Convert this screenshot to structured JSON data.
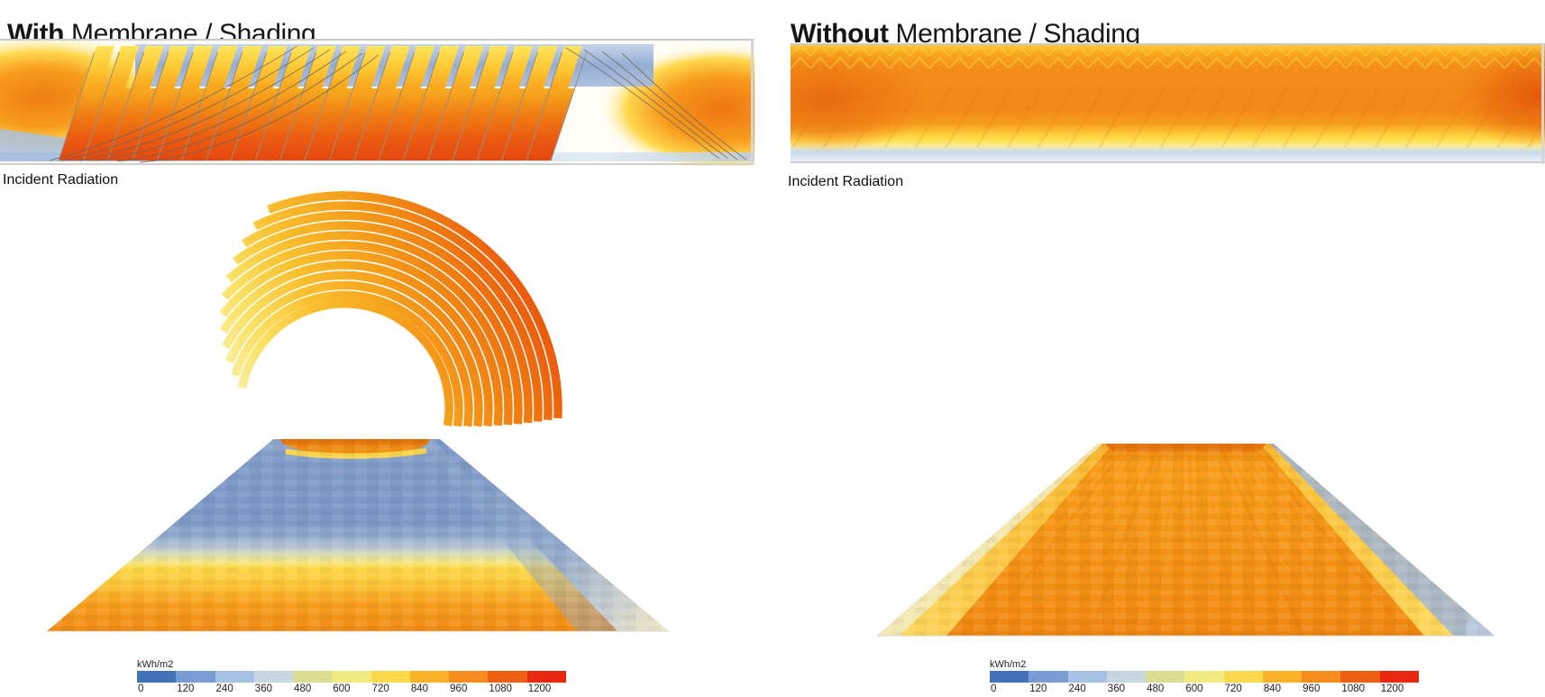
{
  "left_panel": {
    "title_bold": "With",
    "title_rest": " Membrane / Shading",
    "radiation_label": "Incident Radiation"
  },
  "right_panel": {
    "title_bold": "Without",
    "title_rest": " Membrane / Shading",
    "radiation_label": "Incident Radiation"
  },
  "legend": {
    "unit": "kWh/m2",
    "ticks": [
      "0",
      "120",
      "240",
      "360",
      "480",
      "600",
      "720",
      "840",
      "960",
      "1080",
      "1200"
    ],
    "colors": [
      "#4472b8",
      "#7a9cd4",
      "#a6c3e6",
      "#c6d7e2",
      "#dade8e",
      "#f1ea7e",
      "#fcd94a",
      "#fbb226",
      "#f68d1d",
      "#ef5f12",
      "#e8290f"
    ]
  },
  "chart_data": [
    {
      "type": "heatmap",
      "title": "With Membrane / Shading",
      "label": "Incident Radiation",
      "unit": "kWh/m2",
      "scale": {
        "min": 0,
        "max": 1300,
        "step": 120,
        "tick_values": [
          0,
          120,
          240,
          360,
          480,
          600,
          720,
          840,
          960,
          1080,
          1200
        ],
        "colors": [
          "#4472b8",
          "#7a9cd4",
          "#a6c3e6",
          "#c6d7e2",
          "#dade8e",
          "#f1ea7e",
          "#fcd94a",
          "#fbb226",
          "#f68d1d",
          "#ef5f12",
          "#e8290f"
        ]
      },
      "legend_position": "bottom-left",
      "views": [
        {
          "name": "section-elevation-strip",
          "value_ranges": "slanted membrane panels 960-1300 kWh/m2 (orange-red); shaded background behind panel tops 120-360 (slate blue); open ends 600-1080 (yellow-orange); ground line 120-360 (pale blue)"
        },
        {
          "name": "membrane-fan",
          "value_ranges": "curved membrane strips grade from ~480-600 (pale yellow) at lower-left tips through 840-1080 (orange) at top to 1080-1300 (red-orange) at upper right; right ends 840-1080"
        },
        {
          "name": "ground-plane-trapezoid",
          "value_ranges": "ground largely shaded 120-360 kWh/m2 (slate blue) beneath membrane; hot band 840-1200 (orange) at far opening; transition 480-720 (pale yellow); near half 600-1080 (yellow to orange); right edge shaded 120-360 (blue)"
        }
      ]
    },
    {
      "type": "heatmap",
      "title": "Without Membrane / Shading",
      "label": "Incident Radiation",
      "unit": "kWh/m2",
      "scale": {
        "min": 0,
        "max": 1300,
        "step": 120,
        "tick_values": [
          0,
          120,
          240,
          360,
          480,
          600,
          720,
          840,
          960,
          1080,
          1200
        ],
        "colors": [
          "#4472b8",
          "#7a9cd4",
          "#a6c3e6",
          "#c6d7e2",
          "#dade8e",
          "#f1ea7e",
          "#fcd94a",
          "#fbb226",
          "#f68d1d",
          "#ef5f12",
          "#e8290f"
        ]
      },
      "legend_position": "bottom-center",
      "views": [
        {
          "name": "section-elevation-strip",
          "value_ranges": "uniform 840-1200 kWh/m2 (orange) over full length; 600-720 (yellow) band near ground; 240-360 (pale blue) at ground line"
        },
        {
          "name": "ground-plane-trapezoid",
          "value_ranges": "ground mostly 840-1080 kWh/m2 (orange) with faint column striping; side fringes 600-720 (yellow); extreme slant edges and lower corners 120-360 (pale blue)"
        }
      ]
    }
  ]
}
